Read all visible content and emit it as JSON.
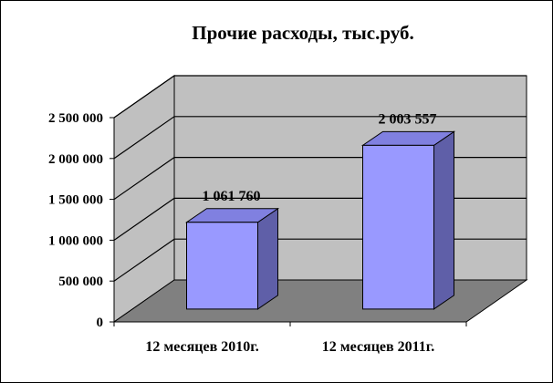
{
  "chart_data": {
    "type": "bar",
    "title": "Прочие расходы, тыс.руб.",
    "categories": [
      "12 месяцев 2010г.",
      "12 месяцев 2011г."
    ],
    "values": [
      1061760,
      2003557
    ],
    "data_labels": [
      "1 061 760",
      "2 003 557"
    ],
    "ylim": [
      0,
      2500000
    ],
    "y_ticks": [
      0,
      500000,
      1000000,
      1500000,
      2000000,
      2500000
    ],
    "y_tick_labels": [
      "0",
      "500 000",
      "1 000 000",
      "1 500 000",
      "2 000 000",
      "2 500 000"
    ],
    "grid": true,
    "legend": "none",
    "style": "3d-column",
    "colors": {
      "bar_front": "#9999ff",
      "bar_side": "#5f5fa8",
      "bar_top": "#8080e0",
      "back_wall": "#c0c0c0",
      "side_wall": "#c0c0c0",
      "floor": "#808080"
    }
  }
}
